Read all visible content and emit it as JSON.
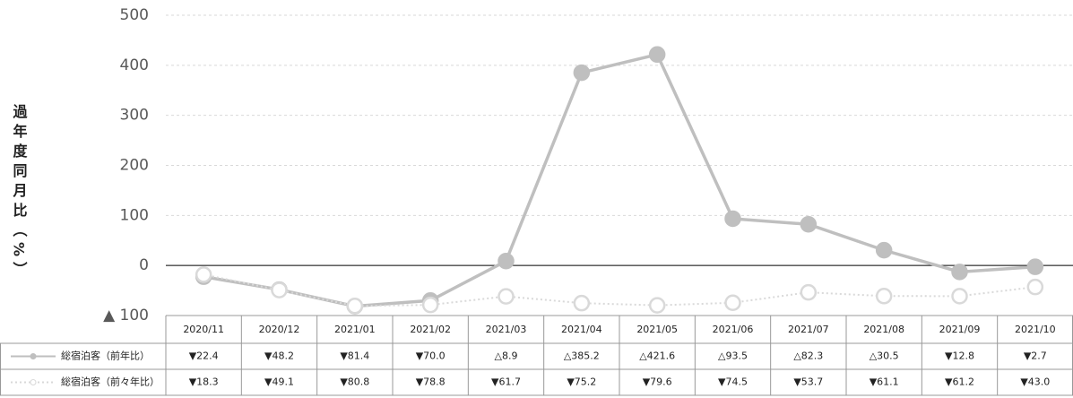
{
  "chart_data": {
    "type": "line",
    "y_label": "過年度同月比（%）",
    "categories": [
      "2020/11",
      "2020/12",
      "2021/01",
      "2021/02",
      "2021/03",
      "2021/04",
      "2021/05",
      "2021/06",
      "2021/07",
      "2021/08",
      "2021/09",
      "2021/10"
    ],
    "series": [
      {
        "name": "総宿泊客（前年比）",
        "color": "#bfbfbf",
        "style": "solid",
        "values": [
          -22.4,
          -48.2,
          -81.4,
          -70.0,
          8.9,
          385.2,
          421.6,
          93.5,
          82.3,
          30.5,
          -12.8,
          -2.7
        ],
        "value_labels": [
          "▼22.4",
          "▼48.2",
          "▼81.4",
          "▼70.0",
          "△8.9",
          "△385.2",
          "△421.6",
          "△93.5",
          "△82.3",
          "△30.5",
          "▼12.8",
          "▼2.7"
        ]
      },
      {
        "name": "総宿泊客（前々年比）",
        "color": "#d9d9d9",
        "style": "dotted",
        "values": [
          -18.3,
          -49.1,
          -80.8,
          -78.8,
          -61.7,
          -75.2,
          -79.6,
          -74.5,
          -53.7,
          -61.1,
          -61.2,
          -43.0
        ],
        "value_labels": [
          "▼18.3",
          "▼49.1",
          "▼80.8",
          "▼78.8",
          "▼61.7",
          "▼75.2",
          "▼79.6",
          "▼74.5",
          "▼53.7",
          "▼61.1",
          "▼61.2",
          "▼43.0"
        ]
      }
    ],
    "ylim": [
      -100,
      500
    ],
    "yticks": [
      {
        "value": -100,
        "label": "▲ 100"
      },
      0,
      100,
      200,
      300,
      400,
      500
    ],
    "grid": true
  }
}
